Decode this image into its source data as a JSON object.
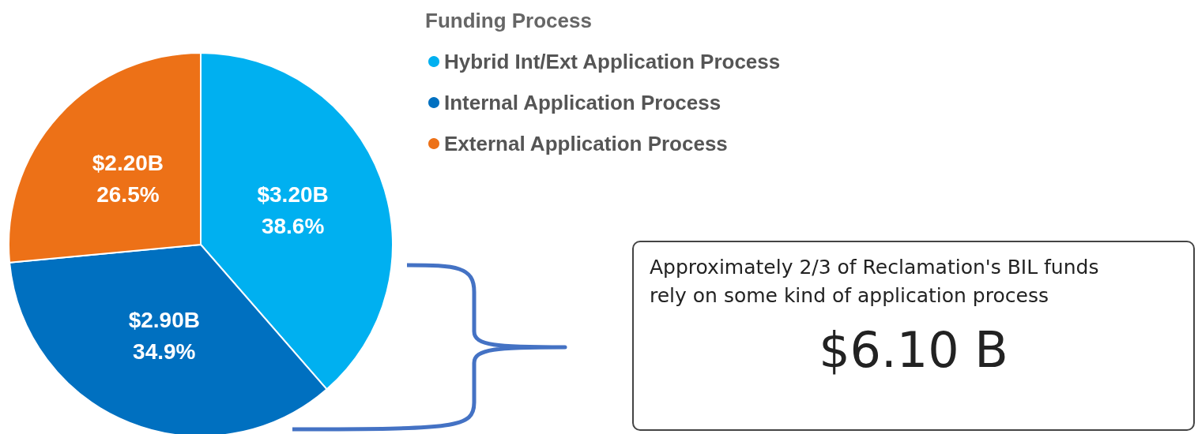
{
  "chart_data": {
    "type": "pie",
    "legend_title": "Funding Process",
    "legend": "top right",
    "categories": [
      "Hybrid Int/Ext Application Process",
      "Internal Application Process",
      "External Application Process"
    ],
    "values": [
      38.6,
      34.9,
      26.5
    ],
    "colors": [
      "#00b0f0",
      "#0070c0",
      "#ed7117"
    ],
    "value_labels": [
      "$3.20B\n38.6%",
      "$2.90B\n34.9%",
      "$2.20B\n26.5%"
    ],
    "annotations": [
      "Approximately 2/3 of Reclamation's BIL funds rely on some kind of application process",
      "$6.10 B"
    ]
  }
}
